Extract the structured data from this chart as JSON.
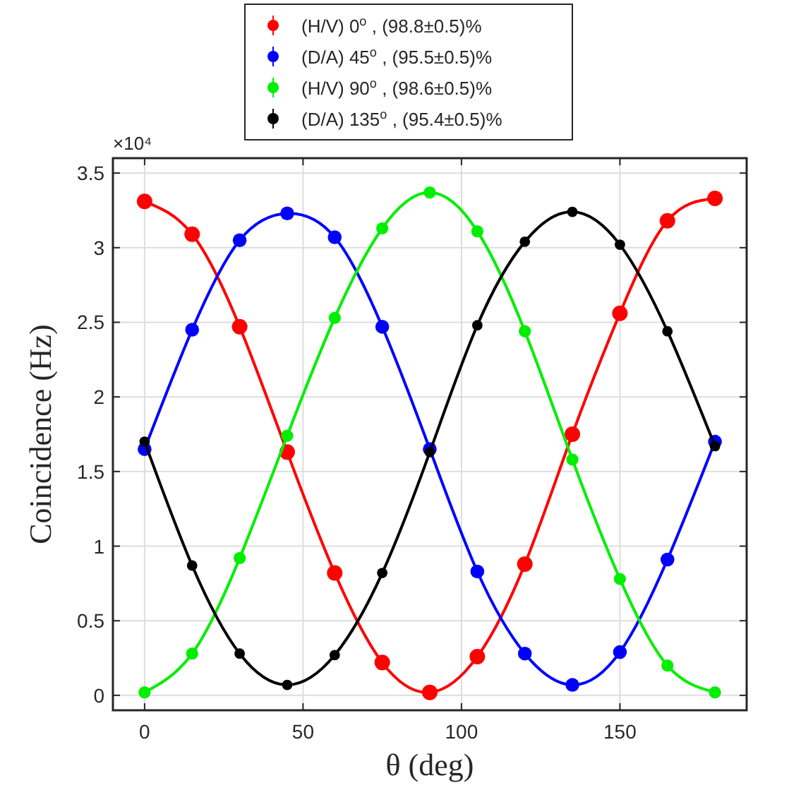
{
  "chart_data": {
    "type": "line",
    "xlabel": "θ (deg)",
    "ylabel": "Coincidence (Hz)",
    "annotations": [
      "×10⁴"
    ],
    "x": [
      0,
      15,
      30,
      45,
      60,
      75,
      90,
      105,
      120,
      135,
      150,
      165,
      180
    ],
    "xlim": [
      -10,
      190
    ],
    "xticks": [
      0,
      50,
      100,
      150
    ],
    "ylim": [
      -0.1,
      3.6
    ],
    "yticks": [
      0,
      0.5,
      1,
      1.5,
      2,
      2.5,
      3,
      3.5
    ],
    "grid": true,
    "legend": "top",
    "marker": "circle",
    "line_style": "solid",
    "series": [
      {
        "name": "(H/V) 0$^{o}$ , (98.8±0.5)%",
        "color": "#ff0000",
        "values": [
          3.31,
          3.09,
          2.47,
          1.63,
          0.82,
          0.22,
          0.02,
          0.26,
          0.88,
          1.75,
          2.56,
          3.18,
          3.33
        ]
      },
      {
        "name": "(D/A) 45$^{o}$ , (95.5±0.5)%",
        "color": "#0000ff",
        "values": [
          1.65,
          2.45,
          3.05,
          3.23,
          3.07,
          2.47,
          1.65,
          0.83,
          0.28,
          0.07,
          0.29,
          0.91,
          1.7
        ]
      },
      {
        "name": "(H/V) 90$^{o}$ , (98.6±0.5)%",
        "color": "#00ee00",
        "values": [
          0.02,
          0.28,
          0.92,
          1.74,
          2.53,
          3.13,
          3.37,
          3.11,
          2.44,
          1.58,
          0.78,
          0.2,
          0.02
        ]
      },
      {
        "name": "(D/A) 135$^{o}$ , (95.4±0.5)%",
        "color": "#000000",
        "values": [
          1.7,
          0.87,
          0.28,
          0.07,
          0.27,
          0.82,
          1.63,
          2.48,
          3.04,
          3.24,
          3.02,
          2.44,
          1.67
        ]
      }
    ]
  }
}
